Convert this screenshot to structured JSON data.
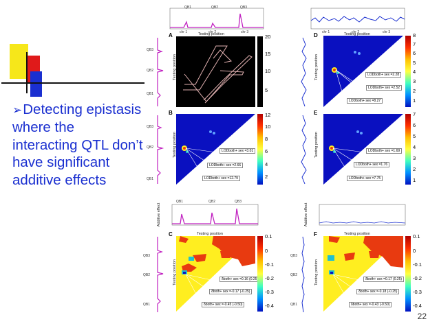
{
  "slide": {
    "bullet_arrow": "➢",
    "bullet_text": "Detecting epistasis where the interacting QTL don’t have significant additive effects",
    "page_number": "22"
  },
  "panels": {
    "A": {
      "label": "A"
    },
    "B": {
      "label": "B",
      "colorbar": [
        "12",
        "10",
        "8",
        "6",
        "4",
        "2"
      ],
      "lod_labels": [
        "LODboth+ sex =3.01",
        "LODboth+ sex =2.66",
        "LODboth+ sex =12.79"
      ]
    },
    "C": {
      "label": "C",
      "colorbar": [
        "0.1",
        "0",
        "-0.1",
        "-0.2",
        "-0.3",
        "-0.4"
      ],
      "effect_labels": [
        "δboth+ sex =0.16 (0.25)",
        "δboth+ sex =-0.17 (-0.25)",
        "δboth+ sex =-0.45 (-0.50)"
      ]
    },
    "D": {
      "label": "D",
      "colorbar": [
        "8",
        "7",
        "6",
        "5",
        "4",
        "3",
        "2",
        "1"
      ],
      "lod_labels": [
        "LODboth+ sex =2.28",
        "LODboth+ sex =2.52",
        "LODboth+ sex =8.27"
      ]
    },
    "E": {
      "label": "E",
      "colorbar": [
        "7",
        "6",
        "5",
        "4",
        "3",
        "2",
        "1"
      ],
      "lod_labels": [
        "LODboth+ sex =1.69",
        "LODboth+ sex =1.76",
        "LODboth+ sex =7.75"
      ]
    },
    "F": {
      "label": "F",
      "colorbar": [
        "0.1",
        "0",
        "-0.1",
        "-0.2",
        "-0.3",
        "-0.4"
      ],
      "effect_labels": [
        "δboth+ sex =0.17 (0.25)",
        "δboth+ sex =-0.18 (-0.25)",
        "δboth+ sex =-0.43 (-0.50)"
      ]
    },
    "A_colorbar": [
      "20",
      "15",
      "10",
      "5"
    ]
  },
  "axes": {
    "testing_position": "Testing position",
    "additive_effect": "Additive effect",
    "chr1": "chr 1",
    "chr2": "chr 2",
    "chr3": "chr 3",
    "qtl1": "QB1",
    "qtl2": "QB2",
    "qtl3": "QB3",
    "lod_score": "LOD score"
  },
  "colors": {
    "blue": "#1a2fd0",
    "red": "#e01a1a",
    "yellow": "#f6e71a",
    "heat_blue": "#0a10c0",
    "heat_red": "#e83a10",
    "heat_yellow": "#ffee20"
  }
}
